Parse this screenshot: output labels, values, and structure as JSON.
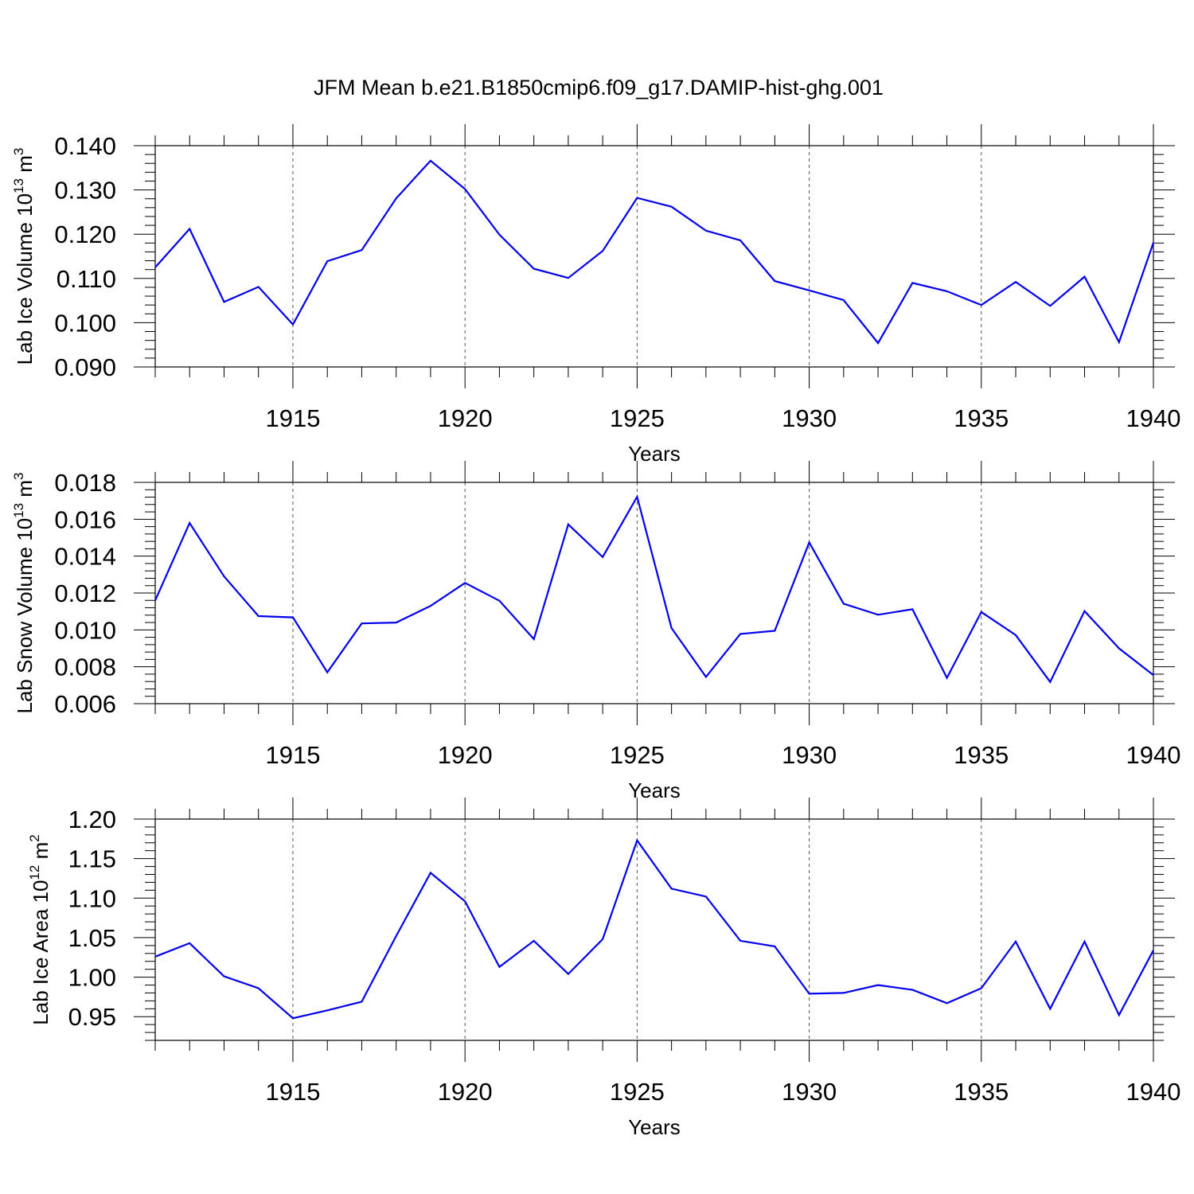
{
  "figure_title": "JFM Mean b.e21.B1850cmip6.f09_g17.DAMIP-hist-ghg.001",
  "colors": {
    "series": "#0000ee",
    "axes": "#000000",
    "gridlines": "#555555"
  },
  "chart_data": [
    {
      "type": "line",
      "xlabel": "Years",
      "ylabel": {
        "text": "Lab Ice Volume 10",
        "exp": "13",
        "unit": " m",
        "unit_exp": "3"
      },
      "xlim": [
        1911,
        1940
      ],
      "ylim": [
        0.09,
        0.14
      ],
      "xticks": [
        1915,
        1920,
        1925,
        1930,
        1935,
        1940
      ],
      "xtick_labels": [
        "1915",
        "1920",
        "1925",
        "1930",
        "1935",
        "1940"
      ],
      "yticks": [
        0.09,
        0.1,
        0.11,
        0.12,
        0.13,
        0.14
      ],
      "ytick_labels": [
        "0.090",
        "0.100",
        "0.110",
        "0.120",
        "0.130",
        "0.140"
      ],
      "grid": "vertical dashed at major x ticks",
      "x": [
        1911,
        1912,
        1913,
        1914,
        1915,
        1916,
        1917,
        1918,
        1919,
        1920,
        1921,
        1922,
        1923,
        1924,
        1925,
        1926,
        1927,
        1928,
        1929,
        1930,
        1931,
        1932,
        1933,
        1934,
        1935,
        1936,
        1937,
        1938,
        1939,
        1940
      ],
      "series": [
        {
          "values": [
            0.1125,
            0.1212,
            0.1047,
            0.1081,
            0.0996,
            0.1139,
            0.1164,
            0.1281,
            0.1366,
            0.1302,
            0.1199,
            0.1122,
            0.1101,
            0.1162,
            0.1282,
            0.1262,
            0.1208,
            0.1186,
            0.1094,
            0.1073,
            0.1051,
            0.0954,
            0.109,
            0.1071,
            0.104,
            0.1092,
            0.1038,
            0.1104,
            0.0956,
            0.1181
          ]
        }
      ]
    },
    {
      "type": "line",
      "xlabel": "Years",
      "ylabel": {
        "text": "Lab Snow Volume 10",
        "exp": "13",
        "unit": " m",
        "unit_exp": "3"
      },
      "xlim": [
        1911,
        1940
      ],
      "ylim": [
        0.006,
        0.018
      ],
      "xticks": [
        1915,
        1920,
        1925,
        1930,
        1935,
        1940
      ],
      "xtick_labels": [
        "1915",
        "1920",
        "1925",
        "1930",
        "1935",
        "1940"
      ],
      "yticks": [
        0.006,
        0.008,
        0.01,
        0.012,
        0.014,
        0.016,
        0.018
      ],
      "ytick_labels": [
        "0.006",
        "0.008",
        "0.010",
        "0.012",
        "0.014",
        "0.016",
        "0.018"
      ],
      "grid": "vertical dashed at major x ticks",
      "x": [
        1911,
        1912,
        1913,
        1914,
        1915,
        1916,
        1917,
        1918,
        1919,
        1920,
        1921,
        1922,
        1923,
        1924,
        1925,
        1926,
        1927,
        1928,
        1929,
        1930,
        1931,
        1932,
        1933,
        1934,
        1935,
        1936,
        1937,
        1938,
        1939,
        1940
      ],
      "series": [
        {
          "values": [
            0.0116,
            0.0158,
            0.0129,
            0.01075,
            0.01068,
            0.0077,
            0.01035,
            0.0104,
            0.0113,
            0.01255,
            0.01158,
            0.0095,
            0.01572,
            0.01395,
            0.01722,
            0.0101,
            0.00745,
            0.00978,
            0.00995,
            0.01474,
            0.01142,
            0.01082,
            0.01112,
            0.0074,
            0.01097,
            0.00972,
            0.00718,
            0.01102,
            0.009,
            0.00755
          ]
        }
      ]
    },
    {
      "type": "line",
      "xlabel": "Years",
      "ylabel": {
        "text": "Lab Ice Area 10",
        "exp": "12",
        "unit": " m",
        "unit_exp": "2"
      },
      "xlim": [
        1911,
        1940
      ],
      "ylim": [
        0.92,
        1.2
      ],
      "xticks": [
        1915,
        1920,
        1925,
        1930,
        1935,
        1940
      ],
      "xtick_labels": [
        "1915",
        "1920",
        "1925",
        "1930",
        "1935",
        "1940"
      ],
      "yticks": [
        0.95,
        1.0,
        1.05,
        1.1,
        1.15,
        1.2
      ],
      "ytick_labels": [
        "0.95",
        "1.00",
        "1.05",
        "1.10",
        "1.15",
        "1.20"
      ],
      "grid": "vertical dashed at major x ticks",
      "x": [
        1911,
        1912,
        1913,
        1914,
        1915,
        1916,
        1917,
        1918,
        1919,
        1920,
        1921,
        1922,
        1923,
        1924,
        1925,
        1926,
        1927,
        1928,
        1929,
        1930,
        1931,
        1932,
        1933,
        1934,
        1935,
        1936,
        1937,
        1938,
        1939,
        1940
      ],
      "series": [
        {
          "values": [
            1.026,
            1.043,
            1.001,
            0.986,
            0.948,
            0.958,
            0.969,
            1.052,
            1.132,
            1.096,
            1.013,
            1.046,
            1.004,
            1.048,
            1.173,
            1.112,
            1.102,
            1.046,
            1.039,
            0.979,
            0.98,
            0.99,
            0.984,
            0.967,
            0.986,
            1.045,
            0.96,
            1.045,
            0.952,
            1.034
          ]
        }
      ]
    }
  ]
}
